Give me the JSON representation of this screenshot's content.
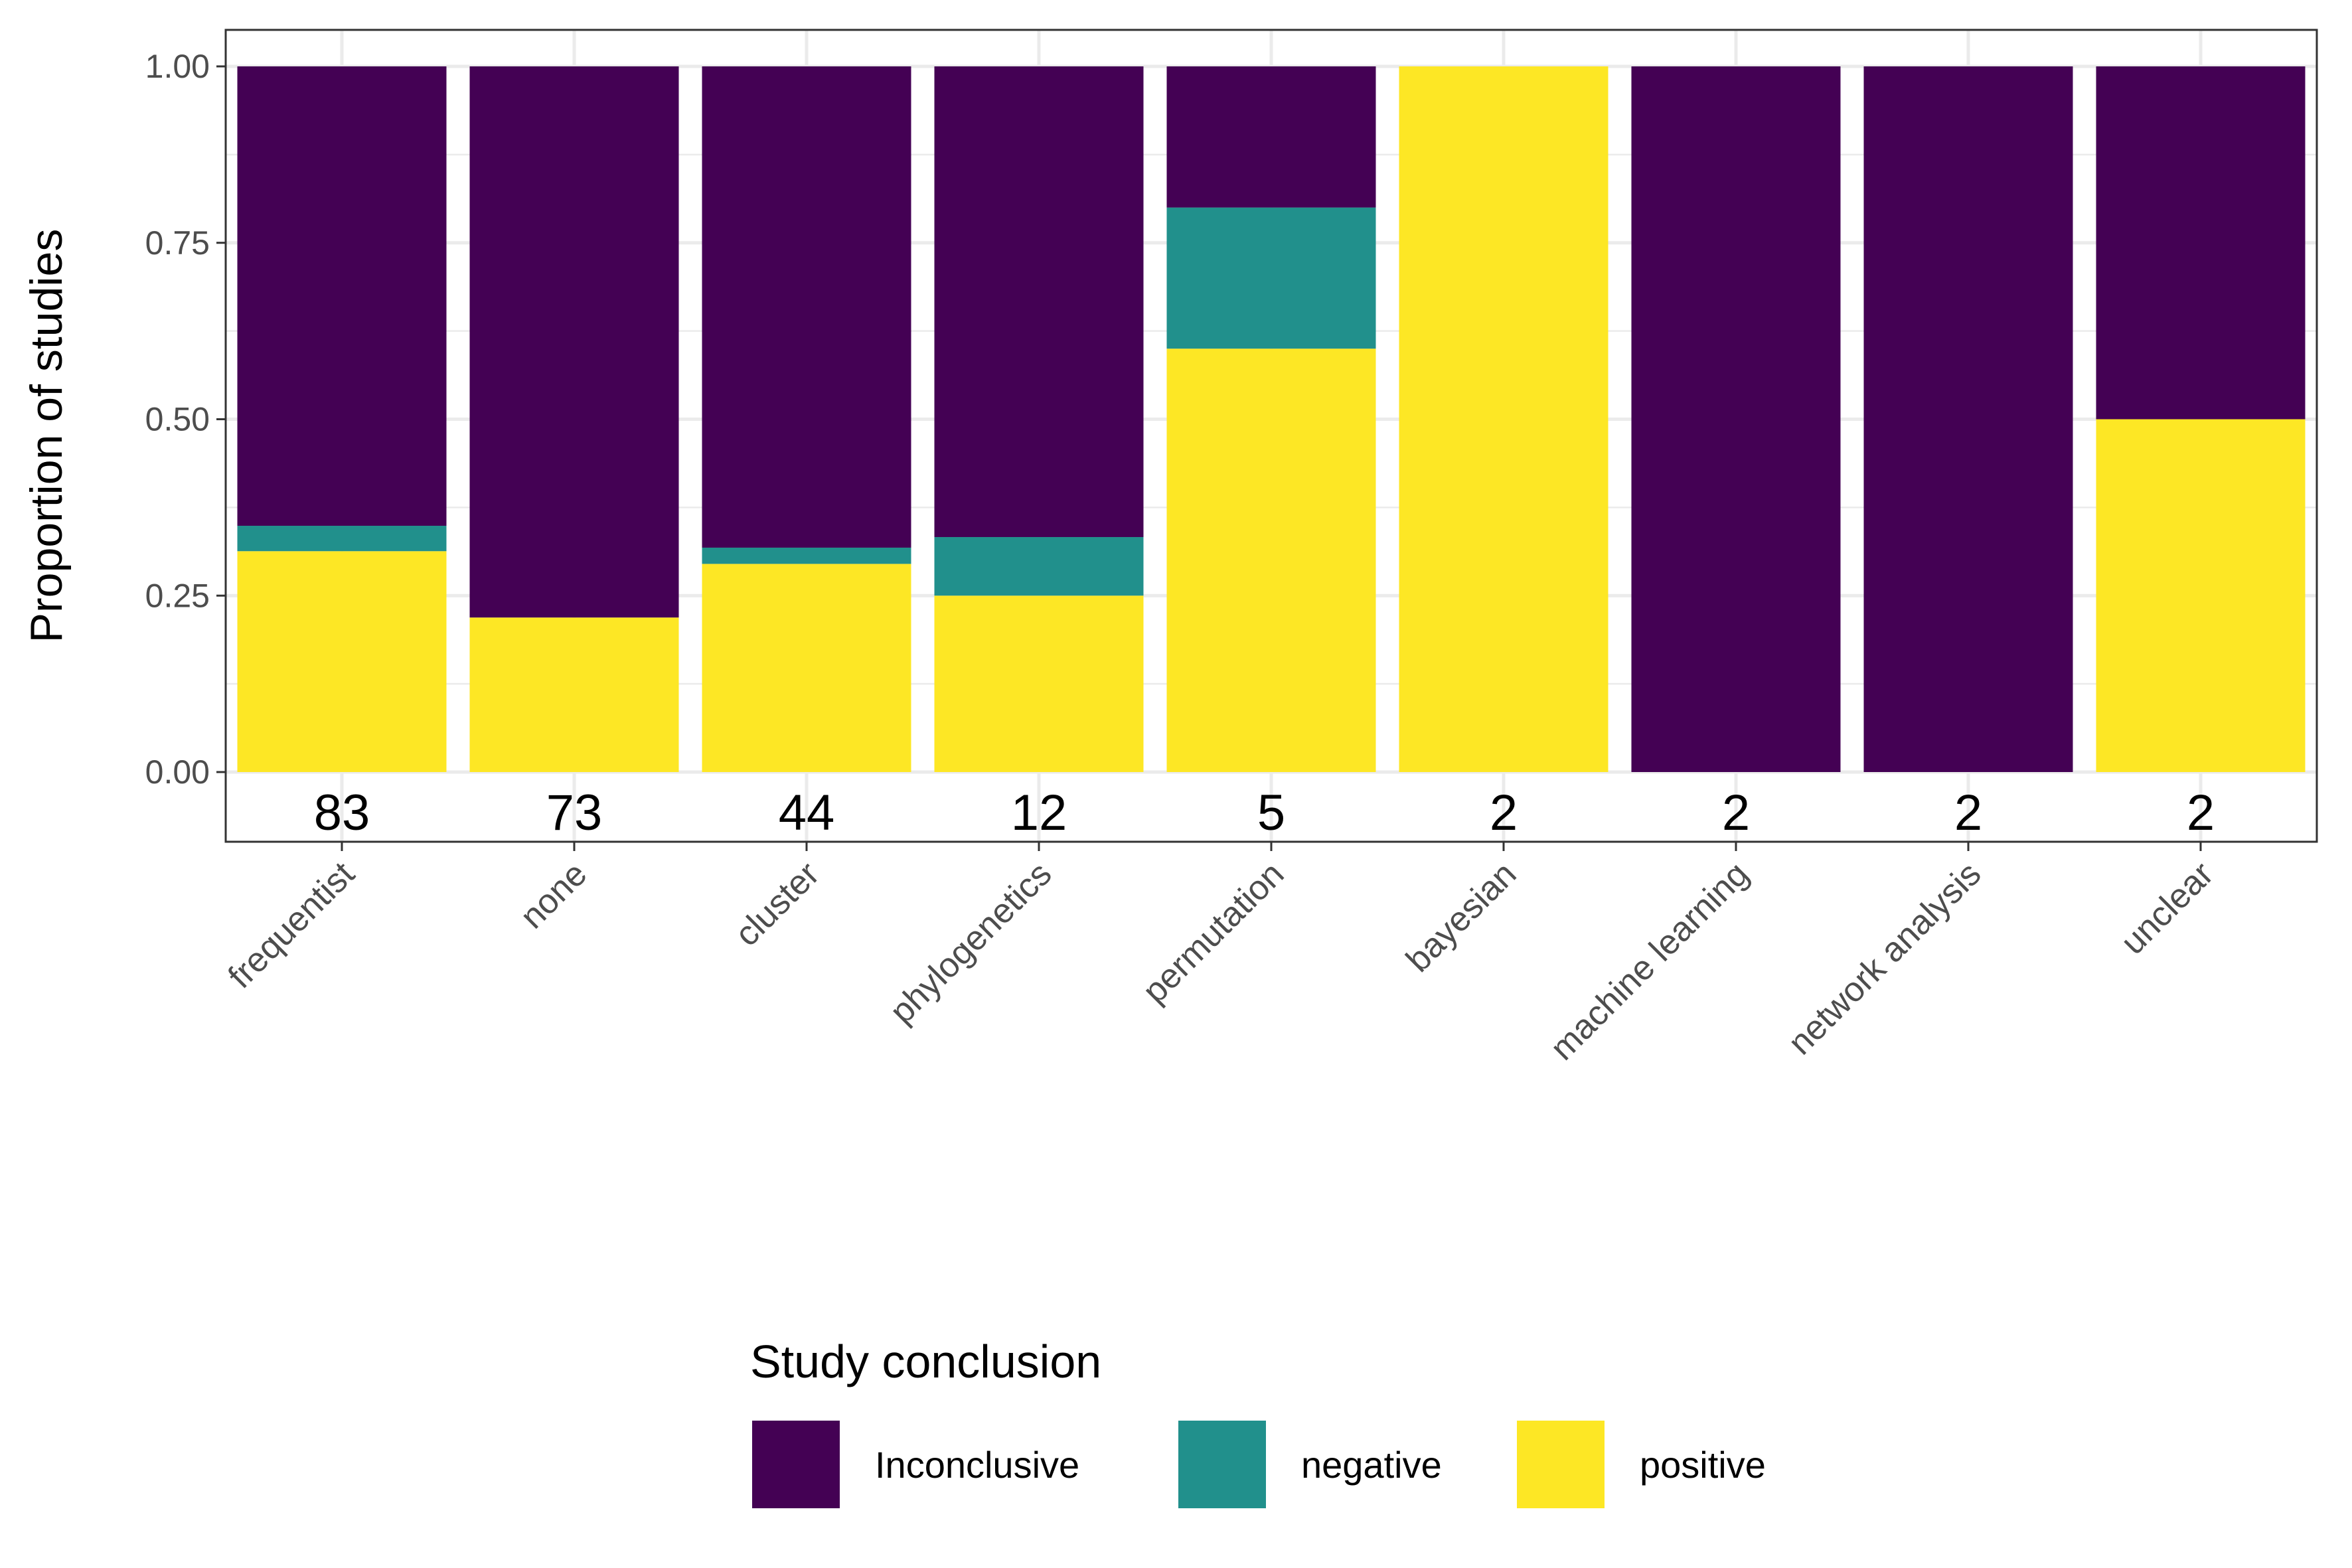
{
  "chart_data": {
    "type": "bar",
    "stacked": true,
    "categories": [
      "frequentist",
      "none",
      "cluster",
      "phylogenetics",
      "permutation",
      "bayesian",
      "machine learning",
      "network analysis",
      "unclear"
    ],
    "counts": [
      "83",
      "73",
      "44",
      "12",
      "5",
      "2",
      "2",
      "2",
      "2"
    ],
    "series": [
      {
        "name": "positive",
        "color": "#FDE725",
        "values": [
          0.313,
          0.219,
          0.295,
          0.25,
          0.6,
          1.0,
          0.0,
          0.0,
          0.5
        ]
      },
      {
        "name": "negative",
        "color": "#21908C",
        "values": [
          0.036,
          0.0,
          0.023,
          0.083,
          0.2,
          0.0,
          0.0,
          0.0,
          0.0
        ]
      },
      {
        "name": "Inconclusive",
        "color": "#440154",
        "values": [
          0.651,
          0.781,
          0.682,
          0.667,
          0.2,
          0.0,
          1.0,
          1.0,
          0.5
        ]
      }
    ],
    "ylabel": "Proportion of studies",
    "xlabel": "",
    "ylim": [
      0,
      1
    ],
    "yticks": [
      "0.00",
      "0.25",
      "0.50",
      "0.75",
      "1.00"
    ],
    "grid": true,
    "legend": {
      "title": "Study conclusion",
      "position": "bottom",
      "entries": [
        {
          "label": "Inconclusive",
          "color": "#440154"
        },
        {
          "label": "negative",
          "color": "#21908C"
        },
        {
          "label": "positive",
          "color": "#FDE725"
        }
      ]
    }
  }
}
